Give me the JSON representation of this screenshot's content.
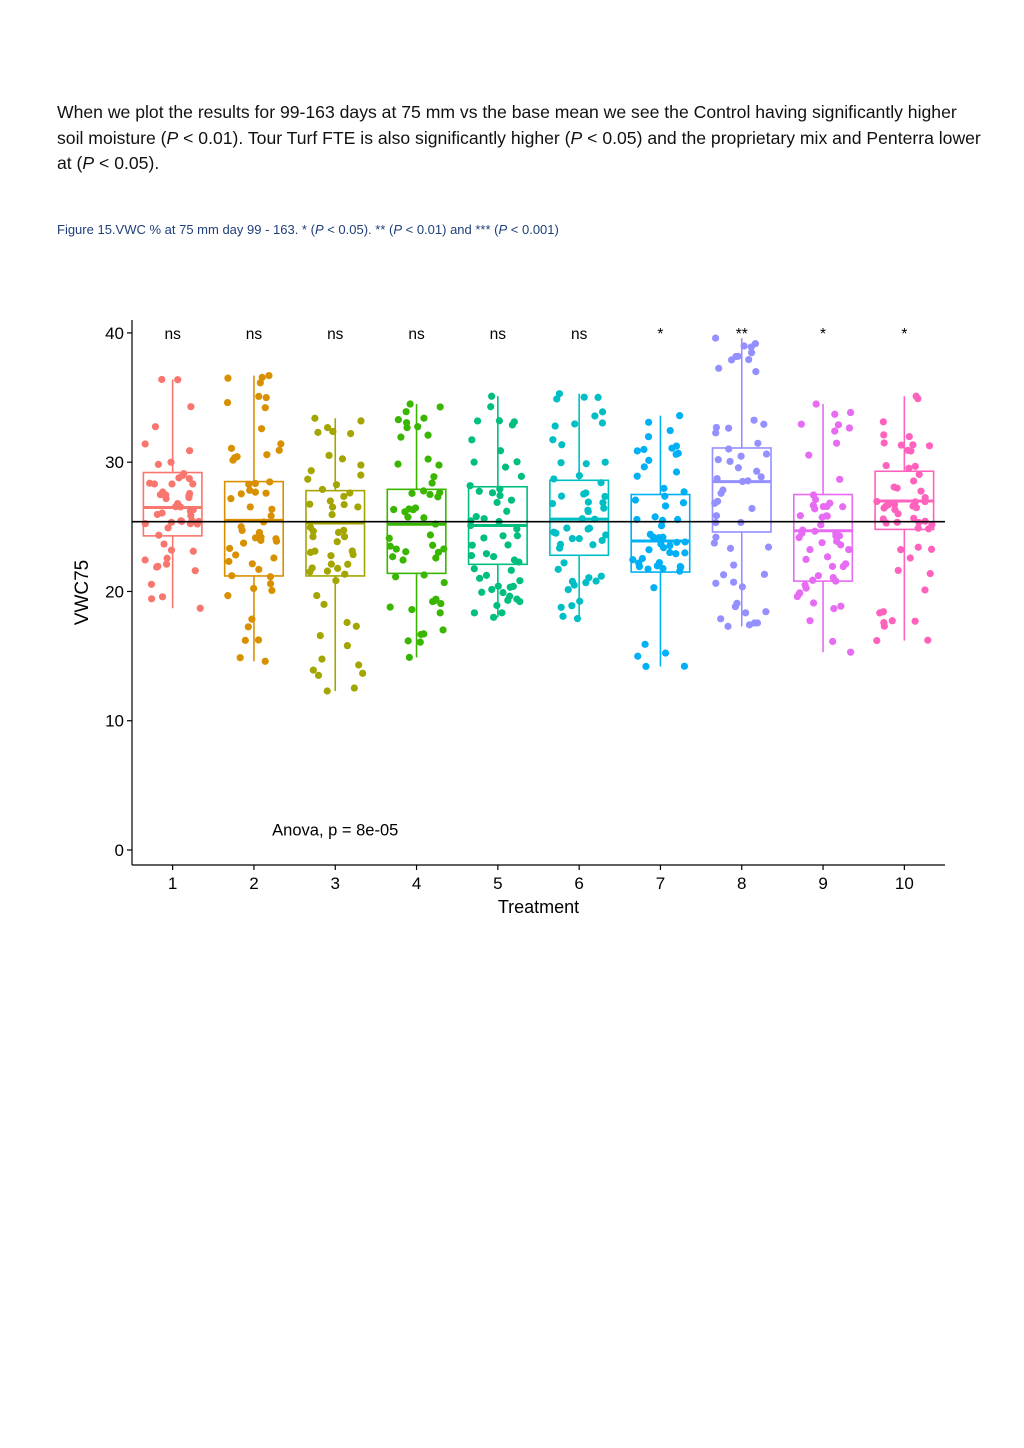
{
  "paragraph": {
    "s1": "When we plot the results for 99-163 days at 75 mm vs the base mean we see the Control having significantly higher soil moisture (",
    "p1": "P",
    "s2": " < 0.01). Tour Turf FTE is also significantly higher (",
    "p2": "P",
    "s3": " < 0.05) and the proprietary mix and Penterra lower at (",
    "p3": "P",
    "s4": " < 0.05)."
  },
  "caption": {
    "c1": "Figure 15.VWC % at 75 mm day 99 - 163. * (",
    "p1": "P",
    "c2": " < 0.05). ** (",
    "p2": "P",
    "c3": " < 0.01) and *** (",
    "p3": "P",
    "c4": " < 0.001)"
  },
  "chart_data": {
    "type": "boxplot",
    "xlabel": "Treatment",
    "ylabel": "VWC75",
    "ylim": [
      0,
      41
    ],
    "yticks": [
      0,
      10,
      20,
      30,
      40
    ],
    "categories": [
      "1",
      "2",
      "3",
      "4",
      "5",
      "6",
      "7",
      "8",
      "9",
      "10"
    ],
    "colors": [
      "#F8766D",
      "#D89000",
      "#A3A500",
      "#39B600",
      "#00BF7D",
      "#00BFC4",
      "#00B0F6",
      "#9590FF",
      "#E76BF3",
      "#FF62BC"
    ],
    "significance": [
      "ns",
      "ns",
      "ns",
      "ns",
      "ns",
      "ns",
      "*",
      "**",
      "*",
      "*"
    ],
    "boxes": [
      {
        "min": 18.7,
        "q1": 24.3,
        "median": 26.5,
        "q3": 29.2,
        "max": 36.4
      },
      {
        "min": 14.6,
        "q1": 21.2,
        "median": 25.5,
        "q3": 28.5,
        "max": 36.7
      },
      {
        "min": 12.3,
        "q1": 21.2,
        "median": 25.3,
        "q3": 27.8,
        "max": 33.4
      },
      {
        "min": 14.9,
        "q1": 21.4,
        "median": 25.2,
        "q3": 27.9,
        "max": 34.5
      },
      {
        "min": 18.0,
        "q1": 22.1,
        "median": 25.1,
        "q3": 28.1,
        "max": 35.1
      },
      {
        "min": 17.9,
        "q1": 22.8,
        "median": 25.6,
        "q3": 28.6,
        "max": 35.3
      },
      {
        "min": 14.2,
        "q1": 21.5,
        "median": 23.9,
        "q3": 27.5,
        "max": 33.6
      },
      {
        "min": 17.3,
        "q1": 24.6,
        "median": 28.5,
        "q3": 31.1,
        "max": 39.6
      },
      {
        "min": 15.3,
        "q1": 20.8,
        "median": 24.7,
        "q3": 27.5,
        "max": 34.5
      },
      {
        "min": 16.2,
        "q1": 24.8,
        "median": 27.0,
        "q3": 29.3,
        "max": 35.1
      }
    ],
    "base_mean": 25.4,
    "annotation": "Anova, p = 8e-05",
    "points_per_group": 55
  }
}
